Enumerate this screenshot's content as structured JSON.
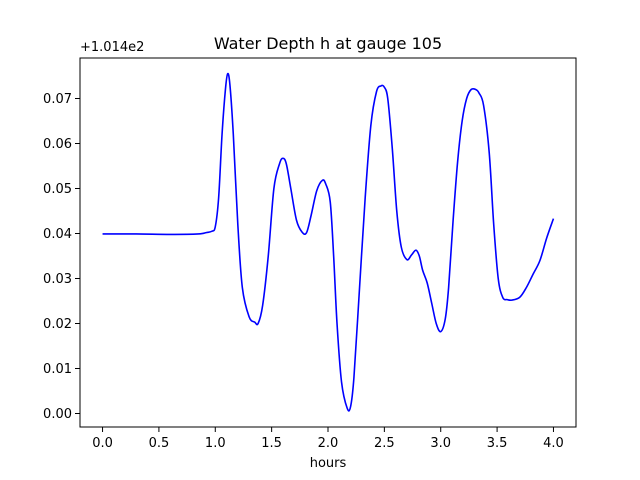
{
  "chart_data": {
    "type": "line",
    "title": "Water Depth h at gauge 105",
    "xlabel": "hours",
    "ylabel": "",
    "y_offset_label": "+1.014e2",
    "xlim": [
      -0.2,
      4.2
    ],
    "ylim": [
      -0.003,
      0.079
    ],
    "x_ticks": [
      0.0,
      0.5,
      1.0,
      1.5,
      2.0,
      2.5,
      3.0,
      3.5,
      4.0
    ],
    "x_tick_labels": [
      "0.0",
      "0.5",
      "1.0",
      "1.5",
      "2.0",
      "2.5",
      "3.0",
      "3.5",
      "4.0"
    ],
    "y_ticks": [
      0.0,
      0.01,
      0.02,
      0.03,
      0.04,
      0.05,
      0.06,
      0.07
    ],
    "y_tick_labels": [
      "0.00",
      "0.01",
      "0.02",
      "0.03",
      "0.04",
      "0.05",
      "0.06",
      "0.07"
    ],
    "grid": false,
    "series_color": "#0000ff",
    "series": [
      {
        "x": [
          0.0,
          0.3,
          0.6,
          0.85,
          0.92,
          0.97,
          1.0,
          1.03,
          1.06,
          1.09,
          1.11,
          1.13,
          1.16,
          1.2,
          1.24,
          1.3,
          1.35,
          1.38,
          1.42,
          1.47,
          1.52,
          1.57,
          1.6,
          1.63,
          1.67,
          1.72,
          1.77,
          1.81,
          1.85,
          1.9,
          1.95,
          1.98,
          2.02,
          2.05,
          2.08,
          2.12,
          2.17,
          2.2,
          2.23,
          2.28,
          2.33,
          2.38,
          2.43,
          2.47,
          2.5,
          2.53,
          2.57,
          2.61,
          2.65,
          2.7,
          2.74,
          2.78,
          2.81,
          2.84,
          2.88,
          2.92,
          2.96,
          3.0,
          3.04,
          3.07,
          3.11,
          3.15,
          3.19,
          3.23,
          3.27,
          3.31,
          3.34,
          3.38,
          3.43,
          3.47,
          3.51,
          3.55,
          3.59,
          3.63,
          3.7,
          3.76,
          3.82,
          3.88,
          3.94,
          4.0
        ],
        "y": [
          0.0399,
          0.0399,
          0.0398,
          0.0399,
          0.0402,
          0.0405,
          0.0415,
          0.048,
          0.062,
          0.072,
          0.0755,
          0.073,
          0.062,
          0.042,
          0.028,
          0.0215,
          0.0203,
          0.02,
          0.024,
          0.035,
          0.05,
          0.0555,
          0.0567,
          0.0555,
          0.05,
          0.043,
          0.0403,
          0.0402,
          0.044,
          0.0495,
          0.0518,
          0.051,
          0.047,
          0.035,
          0.02,
          0.007,
          0.0012,
          0.0015,
          0.008,
          0.028,
          0.048,
          0.064,
          0.0715,
          0.0728,
          0.0725,
          0.07,
          0.059,
          0.045,
          0.037,
          0.0342,
          0.0352,
          0.0363,
          0.035,
          0.0318,
          0.029,
          0.0245,
          0.02,
          0.0182,
          0.021,
          0.028,
          0.043,
          0.056,
          0.065,
          0.07,
          0.072,
          0.072,
          0.0712,
          0.0685,
          0.058,
          0.042,
          0.03,
          0.0258,
          0.0253,
          0.0252,
          0.0258,
          0.028,
          0.031,
          0.034,
          0.039,
          0.0433
        ]
      }
    ]
  }
}
